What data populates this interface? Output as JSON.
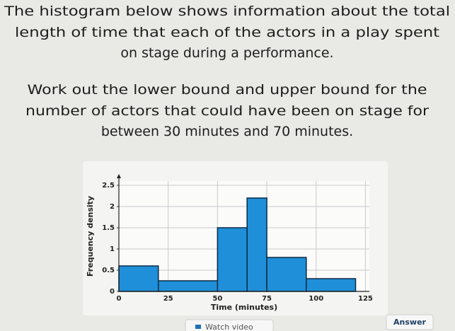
{
  "question": {
    "lines": [
      "The histogram below shows information about the total",
      "length of time that each of the actors in a play spent",
      "on stage during a performance.",
      "Work out the lower bound and upper bound for the",
      "number of actors that could have been on stage for",
      "between 30 minutes and 70 minutes."
    ]
  },
  "chart_data": {
    "type": "histogram",
    "x_label": "Time (minutes)",
    "y_label": "Frequency density",
    "bins": [
      0,
      20,
      50,
      65,
      75,
      95,
      120
    ],
    "values": [
      0.6,
      0.25,
      1.5,
      2.2,
      0.8,
      0.3
    ],
    "color": "#1e8fd8",
    "xlim": [
      0,
      127
    ],
    "ylim": [
      0,
      2.6
    ],
    "xticks": [
      0,
      25,
      50,
      75,
      100,
      125
    ],
    "yticks": [
      0,
      0.5,
      1,
      1.5,
      2,
      2.5
    ],
    "grid": true
  },
  "buttons": {
    "watch_video": "Watch video",
    "answer": "Answer"
  }
}
